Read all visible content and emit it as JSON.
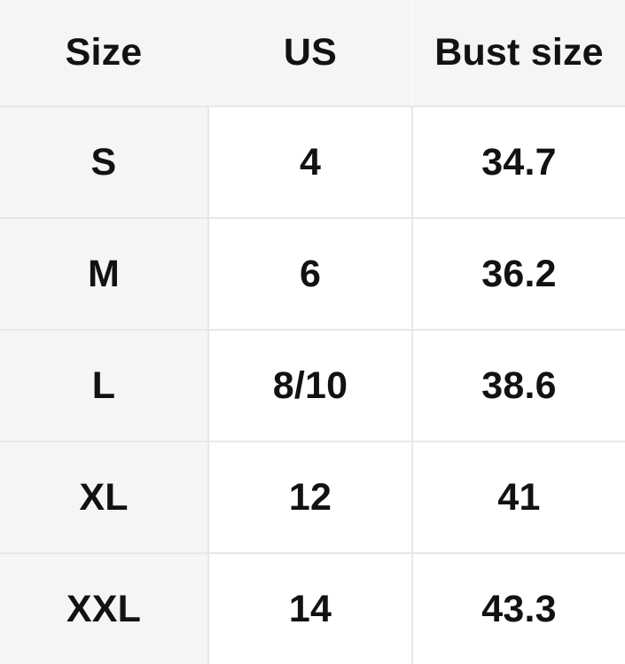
{
  "table": {
    "columns": [
      {
        "key": "size",
        "label": "Size"
      },
      {
        "key": "us",
        "label": "US"
      },
      {
        "key": "bust",
        "label": "Bust size"
      }
    ],
    "rows": [
      {
        "size": "S",
        "us": "4",
        "bust": "34.7"
      },
      {
        "size": "M",
        "us": "6",
        "bust": "36.2"
      },
      {
        "size": "L",
        "us": "8/10",
        "bust": "38.6"
      },
      {
        "size": "XL",
        "us": "12",
        "bust": "41"
      },
      {
        "size": "XXL",
        "us": "14",
        "bust": "43.3"
      }
    ]
  },
  "chart_data": {
    "type": "table",
    "title": "",
    "columns": [
      "Size",
      "US",
      "Bust size"
    ],
    "rows": [
      [
        "S",
        "4",
        "34.7"
      ],
      [
        "M",
        "6",
        "36.2"
      ],
      [
        "L",
        "8/10",
        "38.6"
      ],
      [
        "XL",
        "12",
        "41"
      ],
      [
        "XXL",
        "14",
        "43.3"
      ]
    ]
  },
  "colors": {
    "header_bg": "#f5f5f6",
    "sticky_column_bg": "#f5f5f6",
    "cell_bg": "#ffffff",
    "divider": "#e7e7e8",
    "header_divider": "#fbfbfb",
    "text": "#121212"
  }
}
